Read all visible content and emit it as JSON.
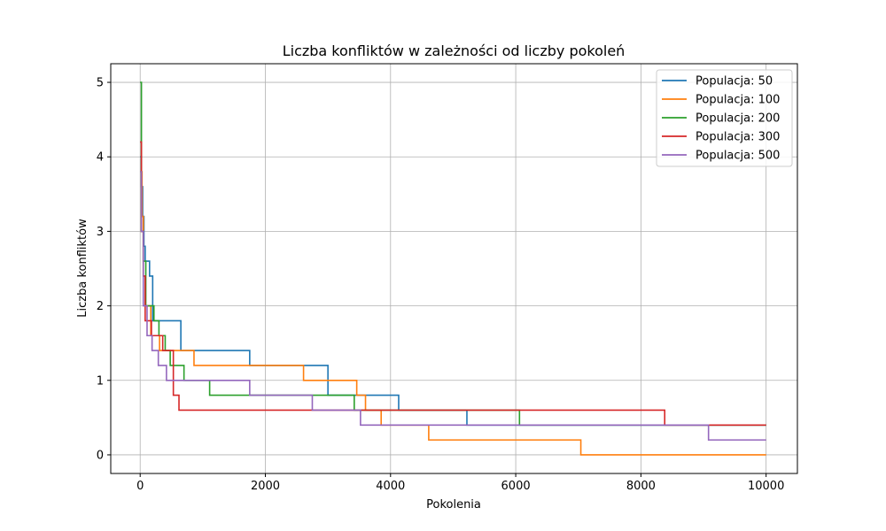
{
  "chart_data": {
    "type": "line",
    "title": "Liczba konfliktów w zależności od liczby pokoleń",
    "xlabel": "Pokolenia",
    "ylabel": "Liczba konfliktów",
    "xlim": [
      -470,
      10500
    ],
    "ylim": [
      -0.25,
      5.25
    ],
    "xticks": [
      0,
      2000,
      4000,
      6000,
      8000,
      10000
    ],
    "yticks": [
      0,
      1,
      2,
      3,
      4,
      5
    ],
    "grid": true,
    "legend_position": "top-right",
    "series": [
      {
        "name": "Populacja: 50",
        "color": "#1f77b4",
        "points": [
          [
            0,
            4.0
          ],
          [
            20,
            3.6
          ],
          [
            40,
            3.2
          ],
          [
            60,
            2.8
          ],
          [
            80,
            2.6
          ],
          [
            150,
            2.4
          ],
          [
            200,
            1.8
          ],
          [
            650,
            1.4
          ],
          [
            1750,
            1.2
          ],
          [
            3000,
            0.8
          ],
          [
            4130,
            0.6
          ],
          [
            5220,
            0.4
          ],
          [
            10000,
            0.4
          ]
        ]
      },
      {
        "name": "Populacja: 100",
        "color": "#ff7f0e",
        "points": [
          [
            0,
            3.8
          ],
          [
            30,
            3.2
          ],
          [
            50,
            2.4
          ],
          [
            80,
            2.0
          ],
          [
            170,
            1.6
          ],
          [
            310,
            1.4
          ],
          [
            860,
            1.2
          ],
          [
            2610,
            1.0
          ],
          [
            3460,
            0.8
          ],
          [
            3600,
            0.6
          ],
          [
            3850,
            0.4
          ],
          [
            4610,
            0.2
          ],
          [
            7040,
            0.0
          ],
          [
            10000,
            0.0
          ]
        ]
      },
      {
        "name": "Populacja: 200",
        "color": "#2ca02c",
        "points": [
          [
            0,
            5.0
          ],
          [
            20,
            3.0
          ],
          [
            50,
            2.6
          ],
          [
            90,
            2.0
          ],
          [
            220,
            1.8
          ],
          [
            300,
            1.6
          ],
          [
            400,
            1.4
          ],
          [
            480,
            1.2
          ],
          [
            700,
            1.0
          ],
          [
            1110,
            0.8
          ],
          [
            3420,
            0.6
          ],
          [
            6060,
            0.4
          ],
          [
            10000,
            0.4
          ]
        ]
      },
      {
        "name": "Populacja: 300",
        "color": "#d62728",
        "points": [
          [
            0,
            4.2
          ],
          [
            20,
            3.0
          ],
          [
            50,
            2.4
          ],
          [
            80,
            1.8
          ],
          [
            180,
            1.6
          ],
          [
            360,
            1.4
          ],
          [
            530,
            0.8
          ],
          [
            620,
            0.6
          ],
          [
            8380,
            0.4
          ],
          [
            10000,
            0.4
          ]
        ]
      },
      {
        "name": "Populacja: 500",
        "color": "#9467bd",
        "points": [
          [
            0,
            3.8
          ],
          [
            20,
            3.0
          ],
          [
            50,
            2.0
          ],
          [
            110,
            1.6
          ],
          [
            190,
            1.4
          ],
          [
            290,
            1.2
          ],
          [
            420,
            1.0
          ],
          [
            1750,
            0.8
          ],
          [
            2750,
            0.6
          ],
          [
            3520,
            0.4
          ],
          [
            9080,
            0.2
          ],
          [
            10000,
            0.2
          ]
        ]
      }
    ]
  }
}
